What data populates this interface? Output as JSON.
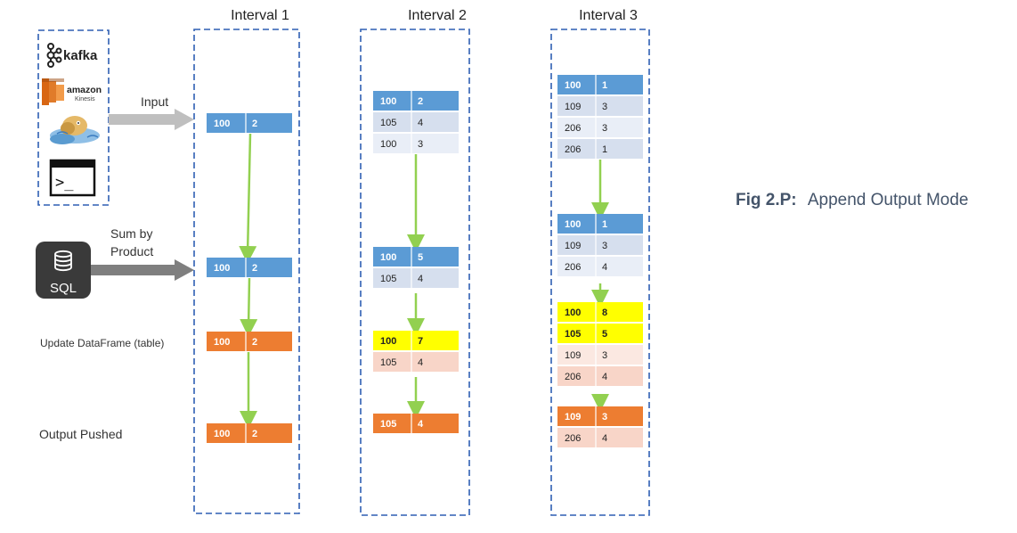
{
  "caption": {
    "bold": "Fig 2.P:",
    "text": "Append Output Mode"
  },
  "labels": {
    "input": "Input",
    "sum": [
      "Sum by",
      "Product"
    ],
    "update": "Update DataFrame (table)",
    "output": "Output Pushed",
    "sql": "SQL"
  },
  "sources": [
    {
      "name": "kafka",
      "text": "kafka"
    },
    {
      "name": "amazon-kinesis",
      "text": "amazon",
      "sub": "Kinesis"
    },
    {
      "name": "hdfs-elephant",
      "text": ""
    },
    {
      "name": "terminal",
      "text": ">_"
    }
  ],
  "intervals": [
    {
      "title": "Interval 1",
      "stages": [
        {
          "role": "input",
          "rows": [
            {
              "c1": "100",
              "c2": "2",
              "s": "blue"
            }
          ]
        },
        {
          "role": "sum",
          "rows": [
            {
              "c1": "100",
              "c2": "2",
              "s": "blue"
            }
          ]
        },
        {
          "role": "update",
          "rows": [
            {
              "c1": "100",
              "c2": "2",
              "s": "orange"
            }
          ]
        },
        {
          "role": "output",
          "rows": [
            {
              "c1": "100",
              "c2": "2",
              "s": "orange"
            }
          ]
        }
      ]
    },
    {
      "title": "Interval 2",
      "stages": [
        {
          "role": "input",
          "rows": [
            {
              "c1": "100",
              "c2": "2",
              "s": "blue"
            },
            {
              "c1": "105",
              "c2": "4",
              "s": "lightblue"
            },
            {
              "c1": "100",
              "c2": "3",
              "s": "paleblue"
            }
          ]
        },
        {
          "role": "sum",
          "rows": [
            {
              "c1": "100",
              "c2": "5",
              "s": "blue"
            },
            {
              "c1": "105",
              "c2": "4",
              "s": "lightblue"
            }
          ]
        },
        {
          "role": "update",
          "rows": [
            {
              "c1": "100",
              "c2": "7",
              "s": "yellow"
            },
            {
              "c1": "105",
              "c2": "4",
              "s": "peach"
            }
          ]
        },
        {
          "role": "output",
          "rows": [
            {
              "c1": "105",
              "c2": "4",
              "s": "orange"
            }
          ]
        }
      ]
    },
    {
      "title": "Interval 3",
      "stages": [
        {
          "role": "input",
          "rows": [
            {
              "c1": "100",
              "c2": "1",
              "s": "blue"
            },
            {
              "c1": "109",
              "c2": "3",
              "s": "lightblue"
            },
            {
              "c1": "206",
              "c2": "3",
              "s": "paleblue"
            },
            {
              "c1": "206",
              "c2": "1",
              "s": "lightblue"
            }
          ]
        },
        {
          "role": "sum",
          "rows": [
            {
              "c1": "100",
              "c2": "1",
              "s": "blue"
            },
            {
              "c1": "109",
              "c2": "3",
              "s": "lightblue"
            },
            {
              "c1": "206",
              "c2": "4",
              "s": "paleblue"
            }
          ]
        },
        {
          "role": "update",
          "rows": [
            {
              "c1": "100",
              "c2": "8",
              "s": "yellow"
            },
            {
              "c1": "105",
              "c2": "5",
              "s": "yellow"
            },
            {
              "c1": "109",
              "c2": "3",
              "s": "palepeach"
            },
            {
              "c1": "206",
              "c2": "4",
              "s": "peach"
            }
          ]
        },
        {
          "role": "output",
          "rows": [
            {
              "c1": "109",
              "c2": "3",
              "s": "orange"
            },
            {
              "c1": "206",
              "c2": "4",
              "s": "peach"
            }
          ]
        }
      ]
    }
  ],
  "colors": {
    "blue": "#5b9bd5",
    "lightblue": "#d6dfee",
    "paleblue": "#e9eef7",
    "orange": "#ed7d31",
    "peach": "#f8d5c8",
    "palepeach": "#fbe8e1",
    "yellow": "#ffff00",
    "arrow_green": "#92d050",
    "arrow_gray": "#bfbfbf",
    "arrow_dark": "#7f7f7f",
    "dash": "#2f5fb3",
    "text": "#333333",
    "caption": "#44546a"
  }
}
